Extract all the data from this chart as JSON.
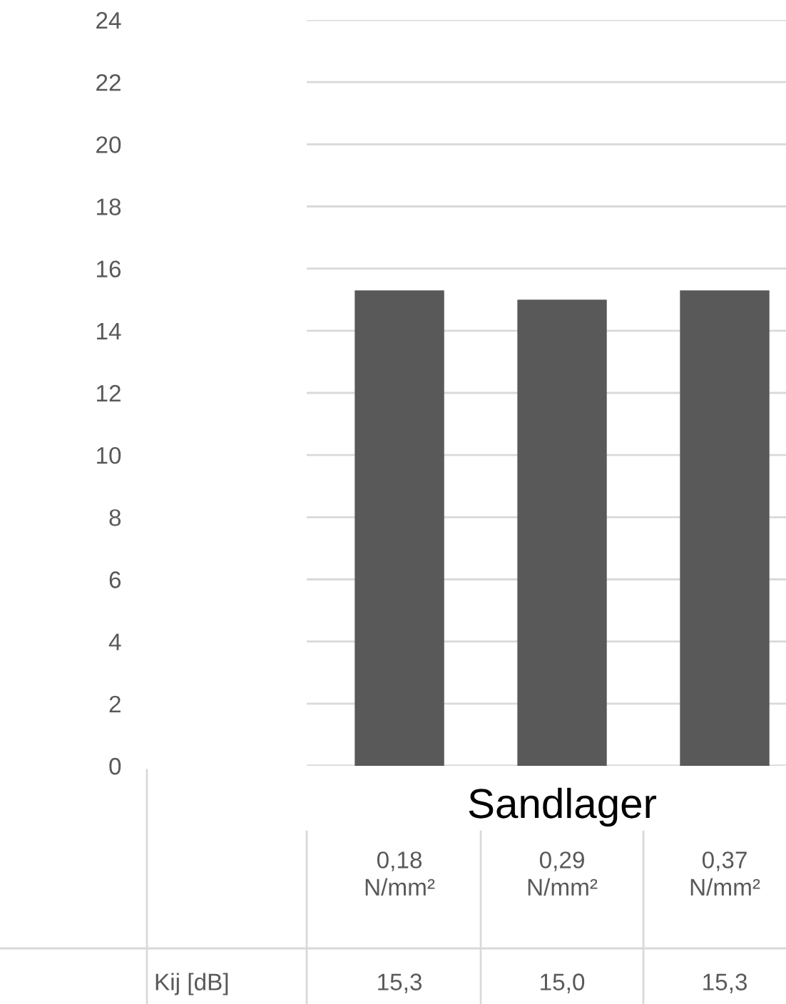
{
  "chart_data": {
    "type": "bar",
    "xlabel": "Sandlager",
    "categories": [
      "0,18\nN/mm²",
      "0,29\nN/mm²",
      "0,37\nN/mm²"
    ],
    "series": [
      {
        "name": "Kij [dB]",
        "color": "#595959",
        "values": [
          15.3,
          15.0,
          15.3
        ],
        "value_labels": [
          "15,3",
          "15,0",
          "15,3"
        ]
      }
    ],
    "ylim": [
      0,
      24
    ],
    "yticks": [
      0,
      2,
      4,
      6,
      8,
      10,
      12,
      14,
      16,
      18,
      20,
      22,
      24
    ],
    "grid": "y",
    "legend": false
  }
}
